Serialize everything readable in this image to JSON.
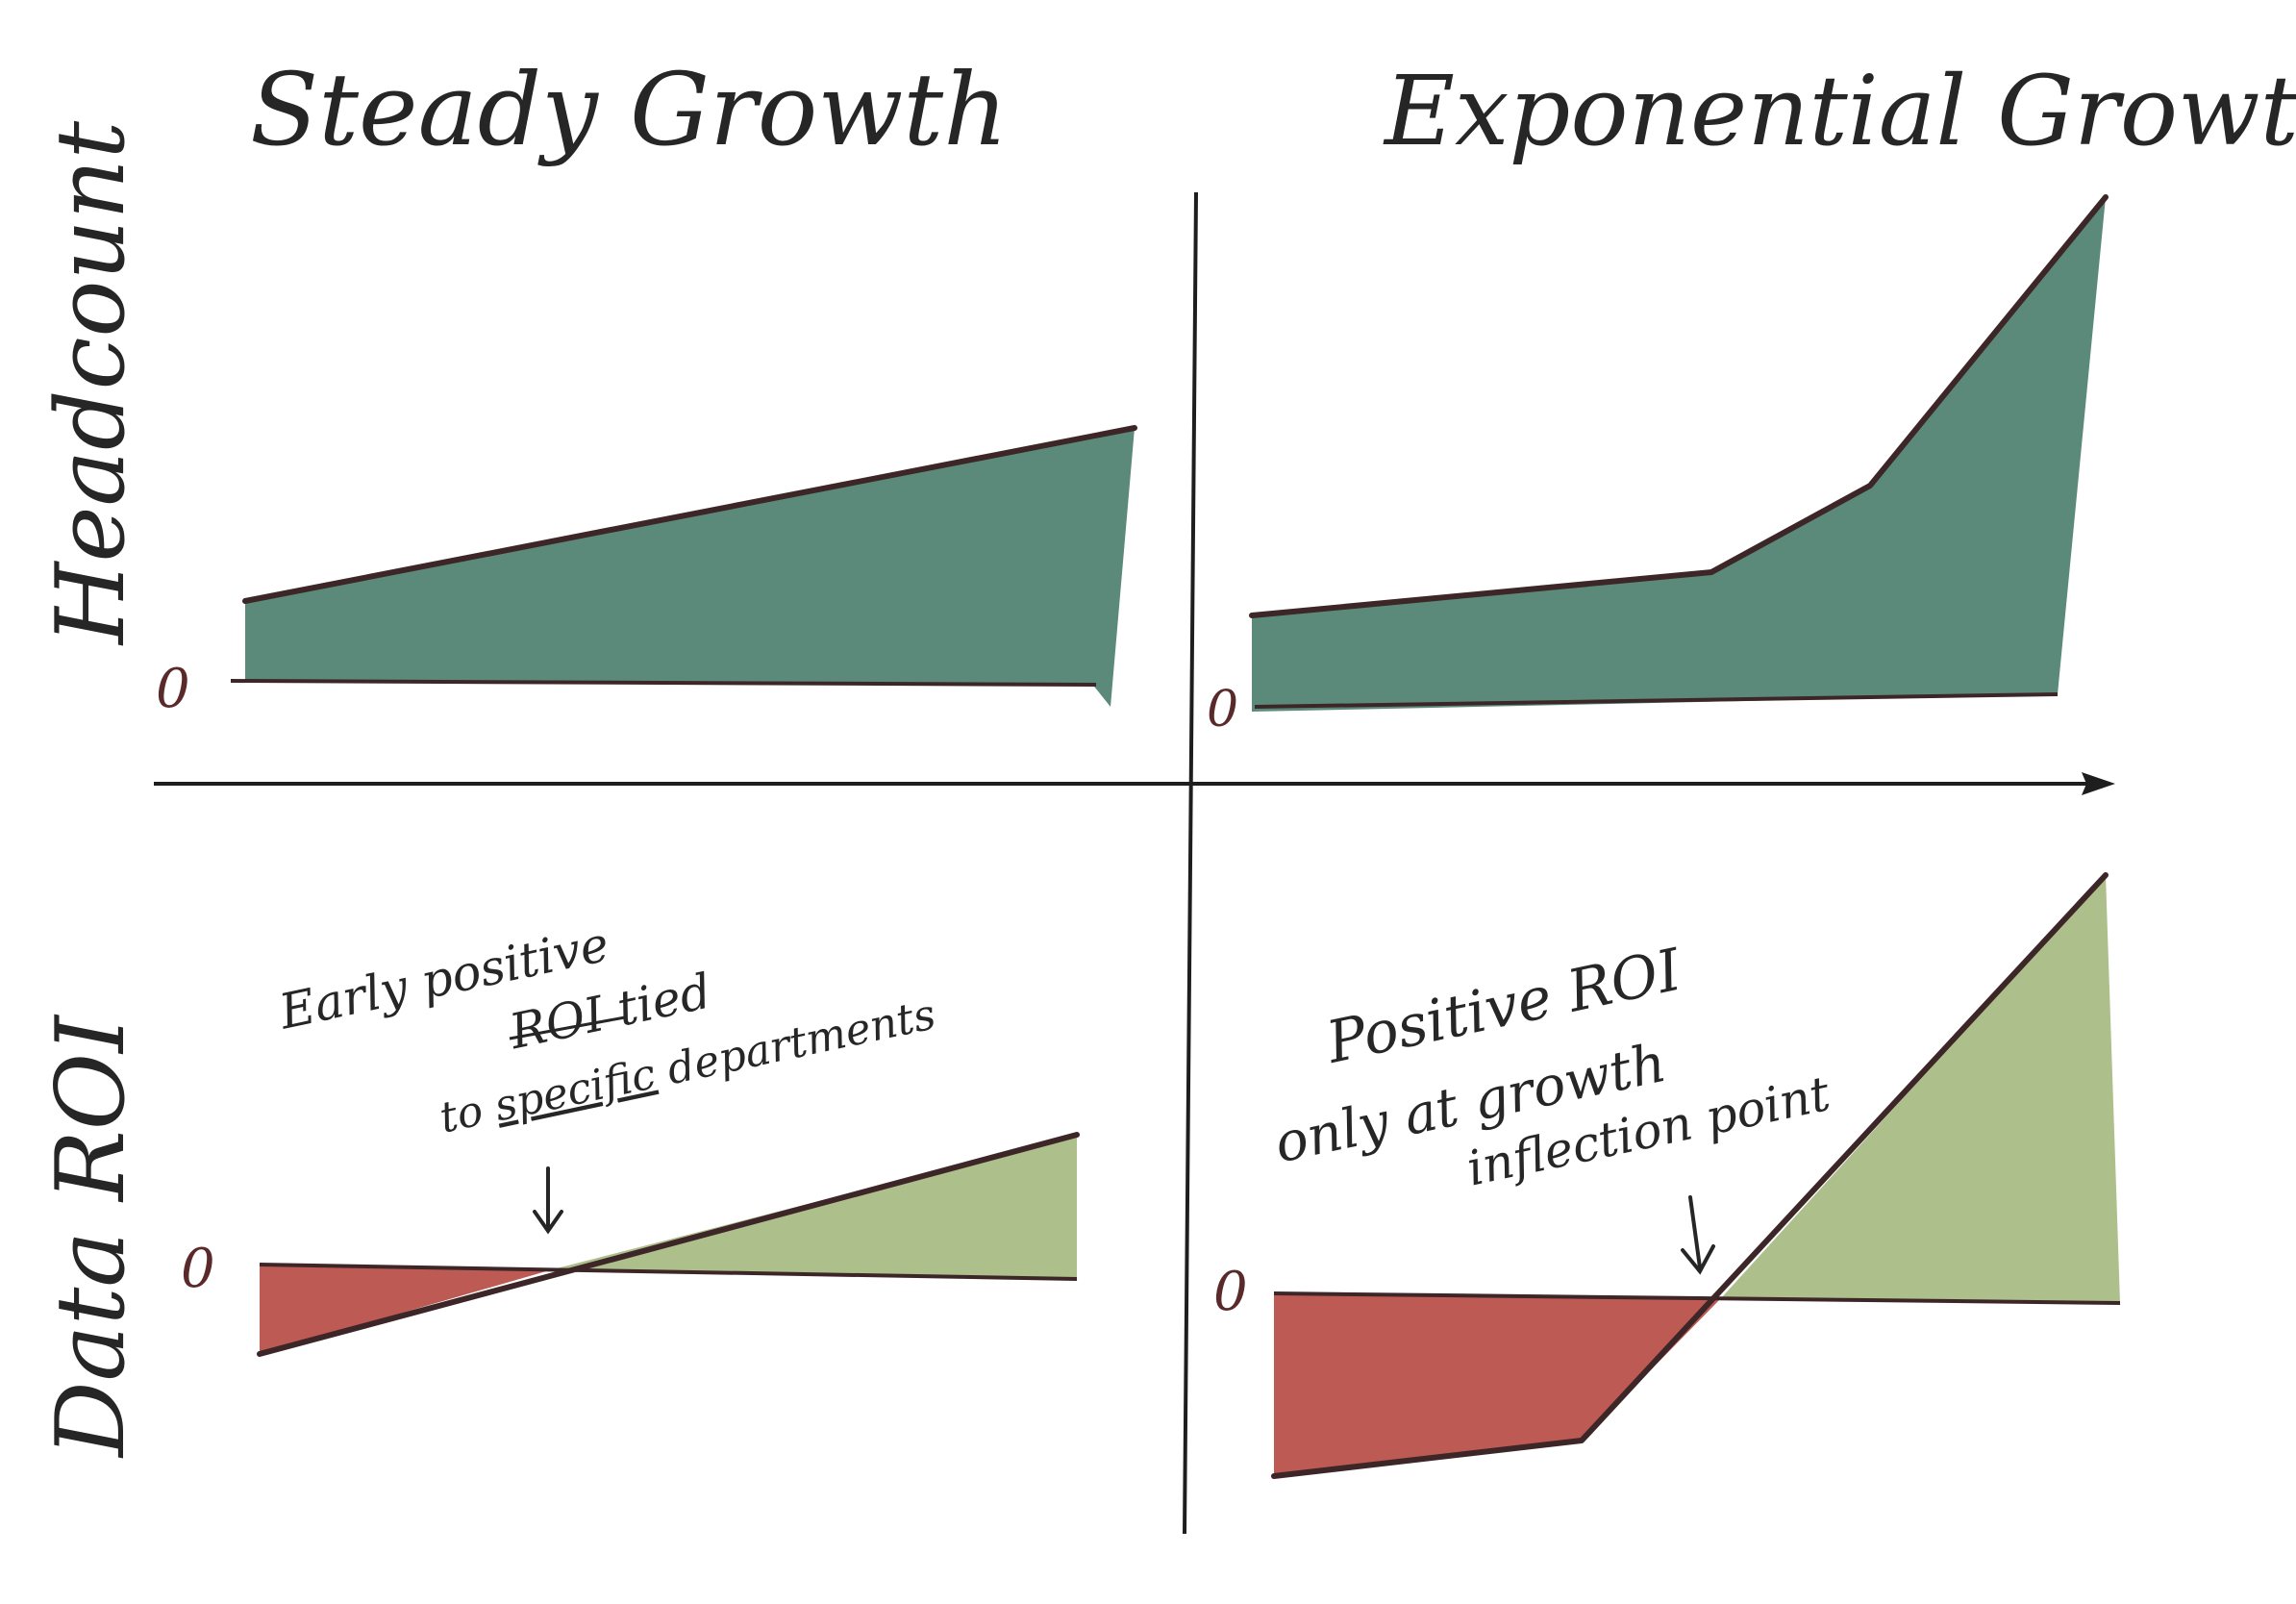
{
  "titles": {
    "left": "Steady Growth",
    "right": "Exponential Growth"
  },
  "axis_labels": {
    "top": "Headcount",
    "bottom": "Data ROI"
  },
  "zero_label": "0",
  "annotations": {
    "steady": {
      "line1": "Early positive",
      "line2": "ROI tied",
      "line3a": "to ",
      "line3b": "specific",
      "line3c": " departments"
    },
    "exponential": {
      "line1": "Positive ROI",
      "line2": "only at growth",
      "line3": "inflection point"
    }
  },
  "colors": {
    "headcount_fill": "#5b8a7a",
    "positive_fill": "#adbf8a",
    "negative_fill": "#bd5a54",
    "line": "#3d2628",
    "axis": "#1e1e1e",
    "zero_label": "#5a2a2a"
  }
}
